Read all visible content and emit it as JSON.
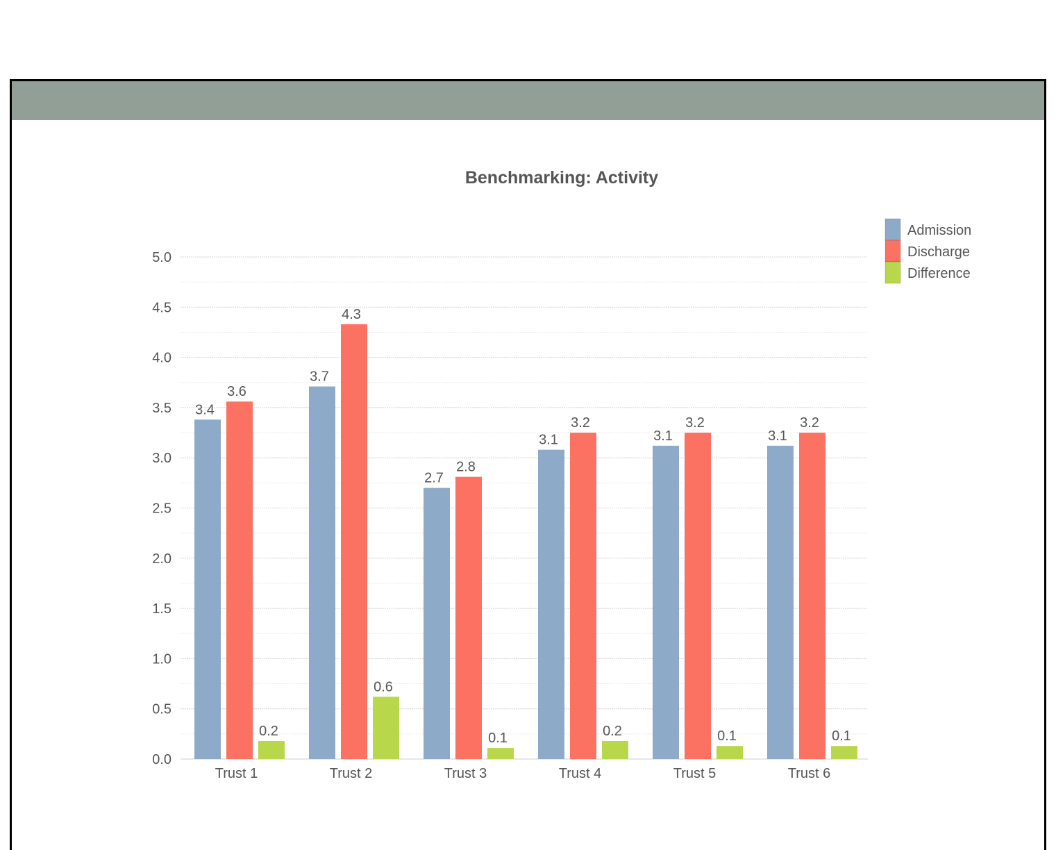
{
  "panel": {
    "header_color": "#919f97"
  },
  "chart_data": {
    "type": "bar",
    "title": "Benchmarking: Activity",
    "xlabel": "",
    "ylabel": "",
    "ylim": [
      0,
      5
    ],
    "yticks": [
      "0.0",
      "0.5",
      "1.0",
      "1.5",
      "2.0",
      "2.5",
      "3.0",
      "3.5",
      "4.0",
      "4.5",
      "5.0"
    ],
    "categories": [
      "Trust 1",
      "Trust 2",
      "Trust 3",
      "Trust 4",
      "Trust 5",
      "Trust 6"
    ],
    "series": [
      {
        "name": "Admission",
        "color": "#8eaac9",
        "values": [
          3.38,
          3.71,
          2.7,
          3.08,
          3.12,
          3.12
        ],
        "labels": [
          "3.4",
          "3.7",
          "2.7",
          "3.1",
          "3.1",
          "3.1"
        ]
      },
      {
        "name": "Discharge",
        "color": "#fb7262",
        "values": [
          3.56,
          4.33,
          2.81,
          3.25,
          3.25,
          3.25
        ],
        "labels": [
          "3.6",
          "4.3",
          "2.8",
          "3.2",
          "3.2",
          "3.2"
        ]
      },
      {
        "name": "Difference",
        "color": "#b8d74a",
        "values": [
          0.18,
          0.62,
          0.11,
          0.18,
          0.13,
          0.13
        ],
        "labels": [
          "0.2",
          "0.6",
          "0.1",
          "0.2",
          "0.1",
          "0.1"
        ]
      }
    ],
    "grid": true,
    "legend_position": "top-right"
  }
}
